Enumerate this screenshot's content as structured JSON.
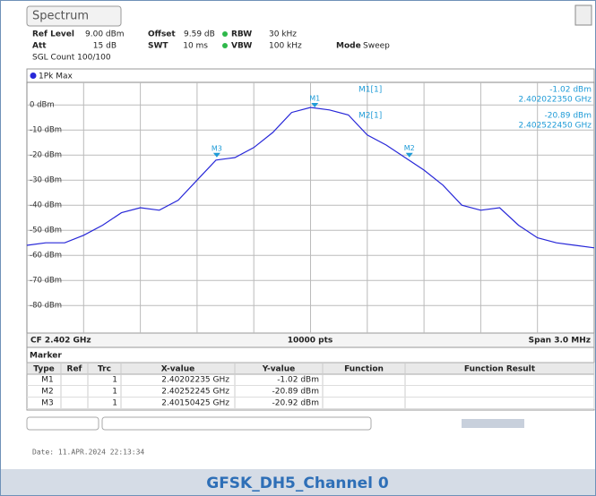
{
  "header": {
    "tab": "Spectrum",
    "rows": [
      [
        {
          "k": "Ref Level",
          "v": "9.00 dBm"
        },
        {
          "k": "Offset",
          "v": "9.59 dB"
        },
        {
          "k": "RBW",
          "v": "30 kHz"
        }
      ],
      [
        {
          "k": "Att",
          "v": "15 dB"
        },
        {
          "k": "SWT",
          "v": "10 ms"
        },
        {
          "k": "VBW",
          "v": "100 kHz"
        },
        {
          "k": "Mode",
          "v": "Sweep"
        }
      ]
    ],
    "count": "SGL Count 100/100"
  },
  "trace_label": "1Pk Max",
  "chart_data": {
    "type": "line",
    "x": [
      2.4005,
      2.4006,
      2.4007,
      2.4008,
      2.4009,
      2.401,
      2.4011,
      2.4012,
      2.4013,
      2.4014,
      2.4015,
      2.4016,
      2.4017,
      2.4018,
      2.4019,
      2.402,
      2.4021,
      2.4022,
      2.4023,
      2.4024,
      2.4025,
      2.4026,
      2.4027,
      2.4028,
      2.4029,
      2.403,
      2.4031,
      2.4032,
      2.4033,
      2.4034,
      2.4035
    ],
    "values": [
      -56,
      -55,
      -55,
      -52,
      -48,
      -43,
      -41,
      -42,
      -38,
      -30,
      -22,
      -21,
      -17,
      -11,
      -3,
      -1,
      -2,
      -4,
      -12,
      -16,
      -21,
      -26,
      -32,
      -40,
      -42,
      -41,
      -48,
      -53,
      -55,
      -56,
      -57
    ],
    "color": "#2727d8",
    "xlim": [
      2.4005,
      2.4035
    ],
    "ylim": [
      -91,
      9
    ],
    "yticks": [
      {
        "value": 0,
        "label": "0 dBm"
      },
      {
        "value": -10,
        "label": "-10 dBm"
      },
      {
        "value": -20,
        "label": "-20 dBm"
      },
      {
        "value": -30,
        "label": "-30 dBm"
      },
      {
        "value": -40,
        "label": "-40 dBm"
      },
      {
        "value": -50,
        "label": "-50 dBm"
      },
      {
        "value": -60,
        "label": "-60 dBm"
      },
      {
        "value": -70,
        "label": "-70 dBm"
      },
      {
        "value": -80,
        "label": "-80 dBm"
      }
    ],
    "xgrid": [
      2.4008,
      2.4011,
      2.4014,
      2.4017,
      2.402,
      2.4023,
      2.4026,
      2.4029,
      2.4032
    ],
    "grid": true,
    "markers": [
      {
        "name": "M1",
        "x": 2.40202235,
        "y": -1.02,
        "x_label": "2.40202235 GHz",
        "y_label": "-1.02 dBm",
        "color": "#1e9bd7"
      },
      {
        "name": "M2",
        "x": 2.40252245,
        "y": -20.89,
        "x_label": "2.40252245 GHz",
        "y_label": "-20.89 dBm",
        "color": "#1e9bd7"
      },
      {
        "name": "M3",
        "x": 2.40150425,
        "y": -20.92,
        "x_label": "2.40150425 GHz",
        "y_label": "-20.92 dBm",
        "color": "#1e9bd7"
      }
    ],
    "readouts": [
      {
        "name": "M1[1]",
        "value": "-1.02 dBm",
        "freq": "2.402022350 GHz"
      },
      {
        "name": "M2[1]",
        "value": "-20.89 dBm",
        "freq": "2.402522450 GHz"
      }
    ],
    "footer": {
      "left": "CF 2.402 GHz",
      "center": "10000 pts",
      "right": "Span 3.0 MHz"
    }
  },
  "marker_table": {
    "title": "Marker",
    "columns": [
      "Type",
      "Ref",
      "Trc",
      "X-value",
      "Y-value",
      "Function",
      "Function Result"
    ],
    "trc": "1"
  },
  "date": "Date: 11.APR.2024  22:13:34",
  "caption": "GFSK_DH5_Channel 0"
}
